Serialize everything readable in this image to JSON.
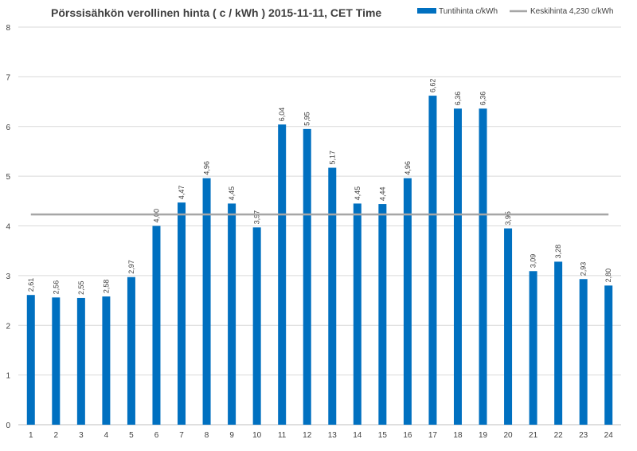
{
  "chart_data": {
    "type": "bar",
    "title": "Pörssisähkön verollinen hinta ( c / kWh ) 2015-11-11, CET Time",
    "categories": [
      "1",
      "2",
      "3",
      "4",
      "5",
      "6",
      "7",
      "8",
      "9",
      "10",
      "11",
      "12",
      "13",
      "14",
      "15",
      "16",
      "17",
      "18",
      "19",
      "20",
      "21",
      "22",
      "23",
      "24"
    ],
    "series": [
      {
        "name": "Tuntihinta c/kWh",
        "type": "bar",
        "color": "#0070C0",
        "values": [
          2.61,
          2.56,
          2.55,
          2.58,
          2.97,
          4.0,
          4.47,
          4.96,
          4.45,
          3.97,
          6.04,
          5.95,
          5.17,
          4.45,
          4.44,
          4.96,
          6.62,
          6.36,
          6.36,
          3.95,
          3.09,
          3.28,
          2.93,
          2.8
        ],
        "labels": [
          "2,61",
          "2,56",
          "2,55",
          "2,58",
          "2,97",
          "4,00",
          "4,47",
          "4,96",
          "4,45",
          "3,97",
          "6,04",
          "5,95",
          "5,17",
          "4,45",
          "4,44",
          "4,96",
          "6,62",
          "6,36",
          "6,36",
          "3,95",
          "3,09",
          "3,28",
          "2,93",
          "2,80"
        ]
      },
      {
        "name": "Keskihinta 4,230 c/kWh",
        "type": "line",
        "color": "#A6A6A6",
        "value": 4.23
      }
    ],
    "xlabel": "",
    "ylabel": "",
    "ylim": [
      0,
      8
    ],
    "yticks": [
      "0",
      "1",
      "2",
      "3",
      "4",
      "5",
      "6",
      "7",
      "8"
    ],
    "grid": "horizontal",
    "legend": "top-right"
  }
}
